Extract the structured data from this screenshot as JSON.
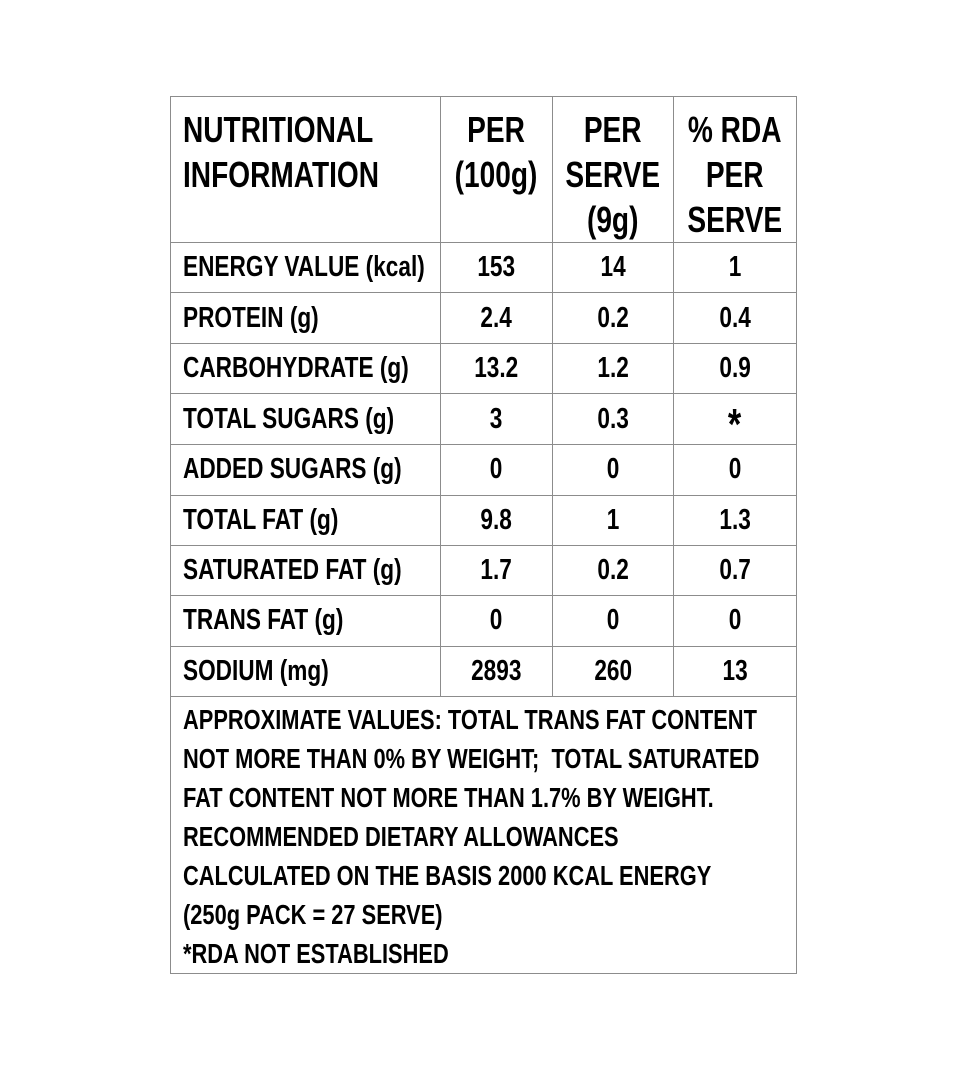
{
  "label": {
    "header": {
      "col_info": "NUTRITIONAL\nINFORMATION",
      "col_per_100g": "PER\n(100g)",
      "col_per_serve": "PER\nSERVE\n(9g)",
      "col_rda": "% RDA\nPER\nSERVE"
    },
    "rows": [
      {
        "label": "ENERGY VALUE (kcal)",
        "per_100g": "153",
        "per_serve": "14",
        "rda": "1"
      },
      {
        "label": "PROTEIN (g)",
        "per_100g": "2.4",
        "per_serve": "0.2",
        "rda": "0.4"
      },
      {
        "label": "CARBOHYDRATE (g)",
        "per_100g": "13.2",
        "per_serve": "1.2",
        "rda": "0.9"
      },
      {
        "label": "TOTAL SUGARS (g)",
        "per_100g": "3",
        "per_serve": "0.3",
        "rda": "*"
      },
      {
        "label": "ADDED SUGARS (g)",
        "per_100g": "0",
        "per_serve": "0",
        "rda": "0"
      },
      {
        "label": "TOTAL FAT (g)",
        "per_100g": "9.8",
        "per_serve": "1",
        "rda": "1.3"
      },
      {
        "label": "SATURATED FAT (g)",
        "per_100g": "1.7",
        "per_serve": "0.2",
        "rda": "0.7"
      },
      {
        "label": "TRANS FAT (g)",
        "per_100g": "0",
        "per_serve": "0",
        "rda": "0"
      },
      {
        "label": "SODIUM (mg)",
        "per_100g": "2893",
        "per_serve": "260",
        "rda": "13"
      }
    ],
    "footnote": {
      "text": "APPROXIMATE VALUES: TOTAL TRANS FAT CONTENT\nNOT MORE THAN 0% BY WEIGHT;  TOTAL SATURATED\nFAT CONTENT NOT MORE THAN 1.7% BY WEIGHT.\nRECOMMENDED DIETARY ALLOWANCES\nCALCULATED ON THE BASIS 2000 KCAL ENERGY\n(250g PACK = 27 SERVE)\n*RDA NOT ESTABLISHED"
    }
  },
  "colors": {
    "background": "#ffffff",
    "text": "#000000",
    "grid_border": "#8c8c8c"
  }
}
